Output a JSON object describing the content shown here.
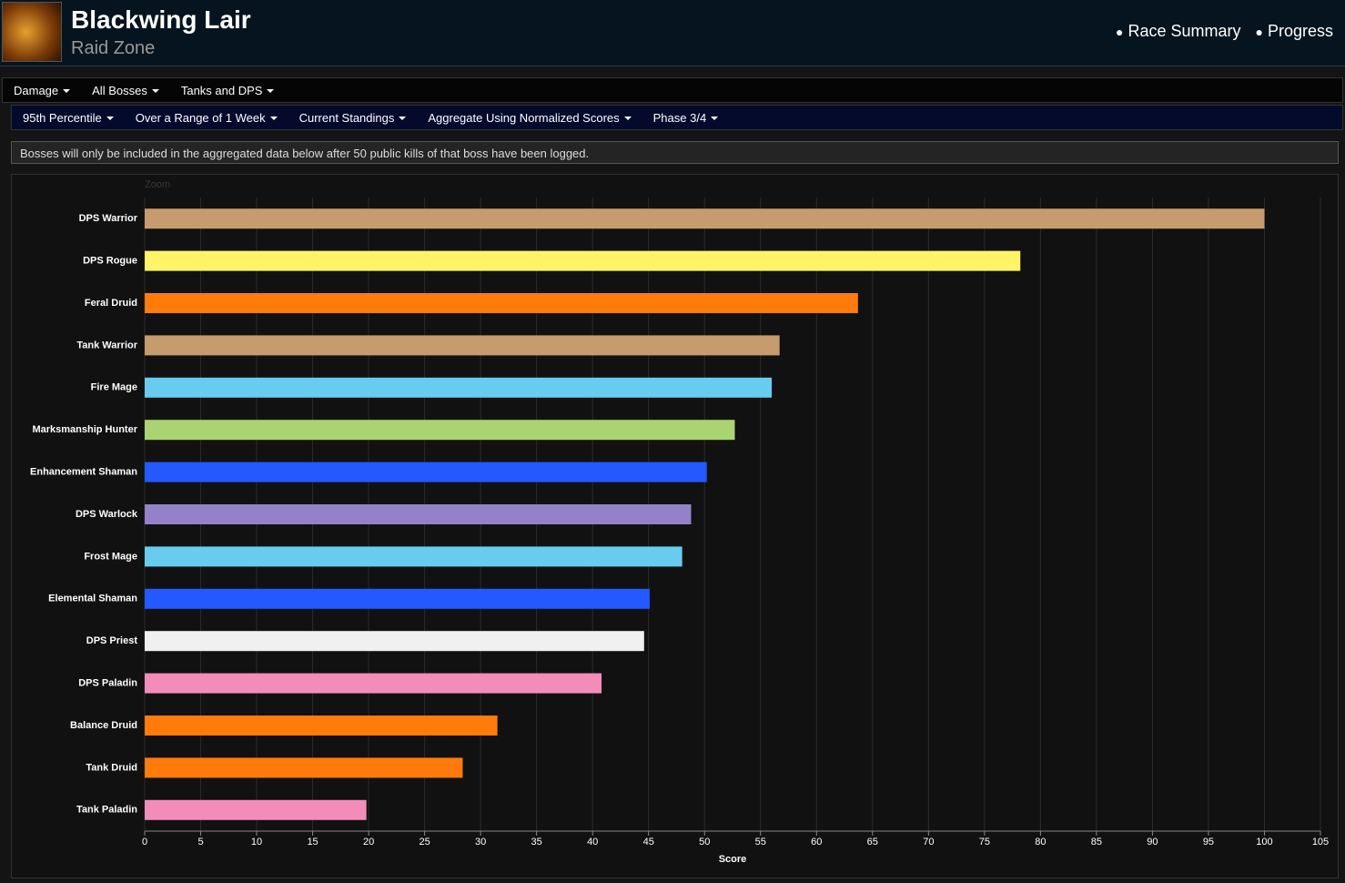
{
  "header": {
    "title": "Blackwing Lair",
    "subtitle": "Raid Zone",
    "links": [
      "Race Summary",
      "Progress"
    ]
  },
  "menu_primary": [
    "Damage",
    "All Bosses",
    "Tanks and DPS"
  ],
  "menu_secondary": [
    "95th Percentile",
    "Over a Range of 1 Week",
    "Current Standings",
    "Aggregate Using Normalized Scores",
    "Phase 3/4"
  ],
  "notice": "Bosses will only be included in the aggregated data below after 50 public kills of that boss have been logged.",
  "chart_data": {
    "type": "hbar",
    "zoom_label": "Zoom",
    "x_label": "Score",
    "categories": [
      "DPS Warrior",
      "DPS Rogue",
      "Feral Druid",
      "Tank Warrior",
      "Fire Mage",
      "Marksmanship Hunter",
      "Enhancement Shaman",
      "DPS Warlock",
      "Frost Mage",
      "Elemental Shaman",
      "DPS Priest",
      "DPS Paladin",
      "Balance Druid",
      "Tank Druid",
      "Tank Paladin"
    ],
    "values": [
      100,
      78.2,
      63.7,
      56.7,
      56.0,
      52.7,
      50.2,
      48.8,
      48.0,
      45.1,
      44.6,
      40.8,
      31.5,
      28.4,
      19.8
    ],
    "colors": [
      "#c69b6d",
      "#fff468",
      "#ff7c0a",
      "#c69b6d",
      "#68ccef",
      "#aad372",
      "#2359ff",
      "#9382c9",
      "#68ccef",
      "#2359ff",
      "#f0f0f0",
      "#f48cba",
      "#ff7c0a",
      "#ff7c0a",
      "#f48cba"
    ],
    "xlim": [
      0,
      105
    ],
    "xticks": [
      0,
      5,
      10,
      15,
      20,
      25,
      30,
      35,
      40,
      45,
      50,
      55,
      60,
      65,
      70,
      75,
      80,
      85,
      90,
      95,
      100,
      105
    ],
    "grid": true
  }
}
